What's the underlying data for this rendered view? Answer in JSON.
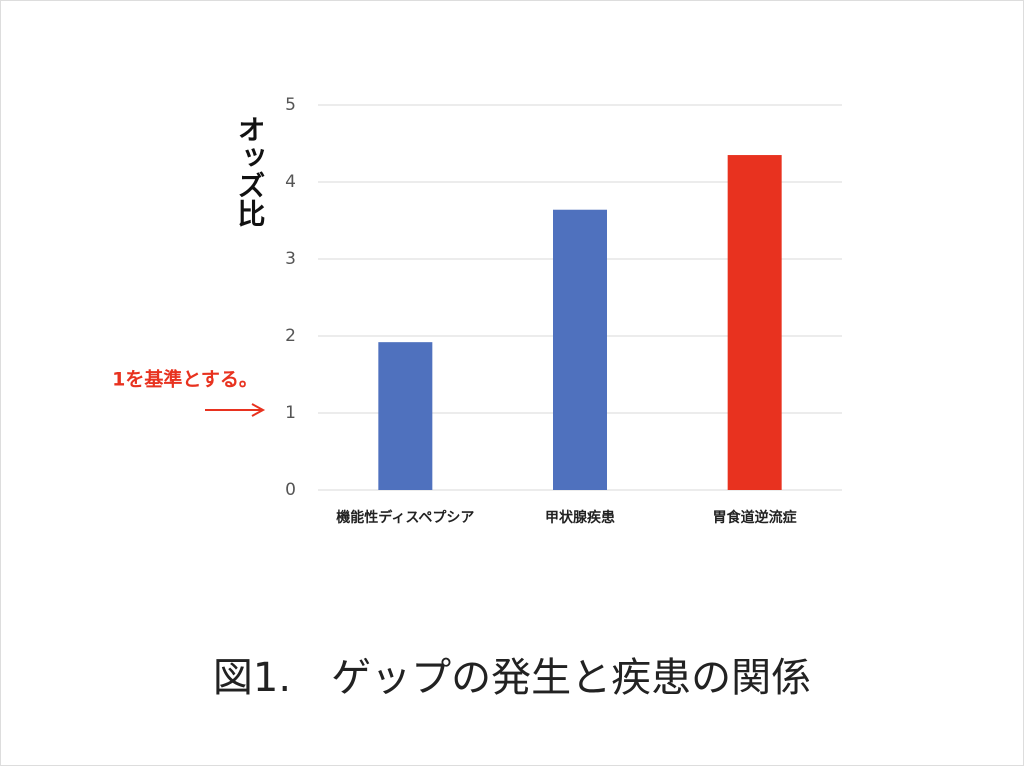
{
  "chart_data": {
    "type": "bar",
    "y_label": "オッズ比",
    "annotation": "1を基準とする。",
    "caption": "図1.　ゲップの発生と疾患の関係",
    "categories": [
      "機能性ディスペプシア",
      "甲状腺疾患",
      "胃食道逆流症"
    ],
    "values": [
      1.92,
      3.64,
      4.35
    ],
    "colors": [
      "#4f71be",
      "#4f71be",
      "#e8321f"
    ],
    "annotation_color": "#e8321f",
    "ylim": [
      0,
      5
    ],
    "yticks": [
      0,
      1,
      2,
      3,
      4,
      5
    ],
    "grid": true
  }
}
